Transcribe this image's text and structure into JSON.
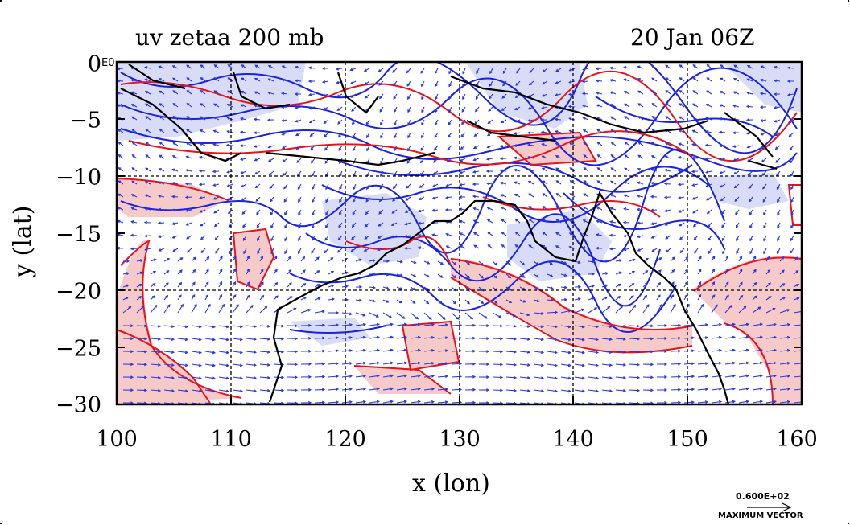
{
  "title_left": "uv zetaa 200 mb",
  "title_right": "20 Jan 06Z",
  "xlabel": "x (lon)",
  "ylabel": "y (lat)",
  "x_ticks": [
    "100",
    "110",
    "120",
    "130",
    "140",
    "150",
    "160"
  ],
  "y_ticks": [
    "0",
    "−5",
    "−10",
    "−15",
    "−20",
    "−25",
    "−30"
  ],
  "corner_label": "E0",
  "max_vector_value": "0.600E+02",
  "max_vector_label": "MAXIMUM VECTOR",
  "colors": {
    "positive_contour": "#e8121b",
    "negative_contour": "#1a22e0",
    "positive_fill": "#f7caca",
    "negative_fill": "#d9dcf6",
    "vectors": "#2a36e0",
    "coastline": "#000000",
    "grid": "#000000"
  },
  "chart_data": {
    "type": "heatmap",
    "variable": "uv zetaa",
    "level": "200 mb",
    "time": "20 Jan 06Z",
    "xlim": [
      100,
      160
    ],
    "ylim": [
      -30,
      0
    ],
    "grid": true,
    "grid_lon": [
      110,
      120,
      130,
      140,
      150
    ],
    "grid_lat": [
      -10,
      -20
    ],
    "overlays": [
      "vectors",
      "coastlines"
    ],
    "maximum_vector": 60
  }
}
